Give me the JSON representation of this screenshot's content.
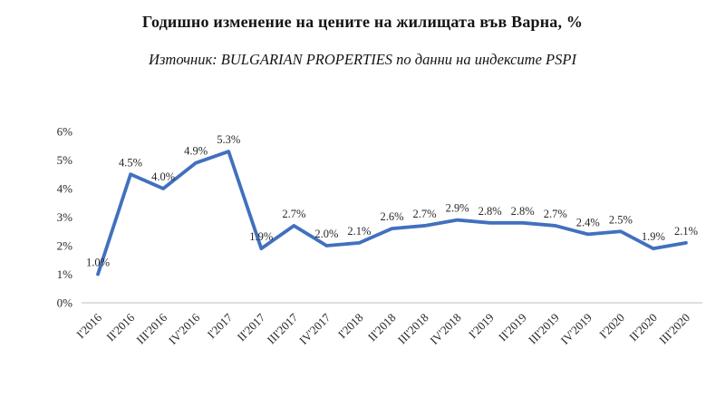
{
  "header": {
    "title": "Годишно изменение на цените на жилищата във Варна, %",
    "subtitle": "Източник: BULGARIAN PROPERTIES по данни на индексите PSPI"
  },
  "chart_data": {
    "type": "line",
    "title": "Годишно изменение на цените на жилищата във Варна, %",
    "subtitle": "Източник: BULGARIAN PROPERTIES по данни на индексите PSPI",
    "categories": [
      "I'2016",
      "II'2016",
      "III'2016",
      "IV'2016",
      "I'2017",
      "II'2017",
      "III'2017",
      "IV'2017",
      "I'2018",
      "II'2018",
      "III'2018",
      "IV'2018",
      "I'2019",
      "II'2019",
      "III'2019",
      "IV'2019",
      "I'2020",
      "II'2020",
      "III'2020"
    ],
    "values": [
      1.0,
      4.5,
      4.0,
      4.9,
      5.3,
      1.9,
      2.7,
      2.0,
      2.1,
      2.6,
      2.7,
      2.9,
      2.8,
      2.8,
      2.7,
      2.4,
      2.5,
      1.9,
      2.1
    ],
    "data_labels": [
      "1.0%",
      "4.5%",
      "4.0%",
      "4.9%",
      "5.3%",
      "1.9%",
      "2.7%",
      "2.0%",
      "2.1%",
      "2.6%",
      "2.7%",
      "2.9%",
      "2.8%",
      "2.8%",
      "2.7%",
      "2.4%",
      "2.5%",
      "1.9%",
      "2.1%"
    ],
    "xlabel": "",
    "ylabel": "",
    "ylim": [
      0,
      6
    ],
    "y_ticks": [
      "0%",
      "1%",
      "2%",
      "3%",
      "4%",
      "5%",
      "6%"
    ],
    "grid": false,
    "legend": "none",
    "line_color": "#4170BE",
    "axis_line_color": "#bfbfbf",
    "label_color": "#262626"
  }
}
